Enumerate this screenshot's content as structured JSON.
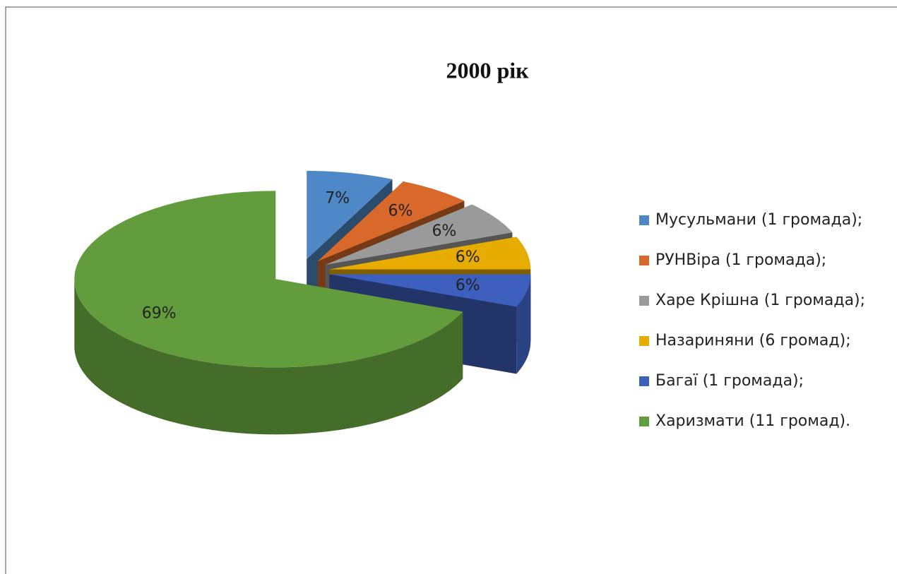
{
  "chart_data": {
    "type": "pie",
    "title": "2000 рік",
    "categories": [
      "Мусульмани (1 громада);",
      "РУНВіра (1 громада);",
      "Харе Крішна (1 громада);",
      "Назариняни (6 громад);",
      "Багаї (1 громада);",
      "Харизмати (11 громад)."
    ],
    "values": [
      7,
      6,
      6,
      6,
      6,
      69
    ],
    "value_labels": [
      "7%",
      "6%",
      "6%",
      "6%",
      "6%",
      "69%"
    ],
    "colors": [
      "#4f88c6",
      "#d9692a",
      "#9a9a9a",
      "#e6ac00",
      "#3d5fbd",
      "#629c3c"
    ],
    "legend": "right"
  }
}
